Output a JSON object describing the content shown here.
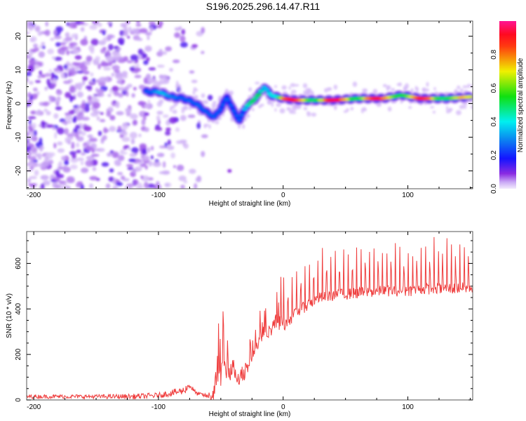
{
  "title": "S196.2025.296.14.47.R11",
  "chart_data": [
    {
      "type": "heatmap",
      "name": "spectrogram",
      "xlabel": "Height of straight line (km)",
      "ylabel": "Frequency (Hz)",
      "xlim": [
        -205.7,
        152
      ],
      "ylim": [
        -25.3,
        24.5
      ],
      "xticks": [
        -200,
        -100,
        0,
        100
      ],
      "xticks_minor_step": 25,
      "yticks": [
        -20,
        -10,
        0,
        10,
        20
      ],
      "yticks_minor_step": 5,
      "grid": false,
      "colorbar": {
        "label": "Normalized spectral amplitude",
        "range": [
          0.0,
          1.0
        ],
        "ticks": [
          0.0,
          0.2,
          0.4,
          0.6,
          0.8
        ],
        "colormap": [
          "#f0e6fb",
          "#7a1ff0",
          "#1010ff",
          "#00f0f0",
          "#10e010",
          "#f0f000",
          "#ff1010",
          "#ff1493"
        ]
      },
      "ridge": {
        "description": "dominant frequency track",
        "x": [
          -110,
          -100,
          -90,
          -80,
          -70,
          -60,
          -55,
          -50,
          -45,
          -40,
          -35,
          -30,
          -25,
          -20,
          -15,
          -10,
          -5,
          0,
          10,
          20,
          40,
          60,
          80,
          95,
          110,
          130,
          150
        ],
        "y": [
          3.5,
          3.5,
          2.0,
          1.5,
          0.0,
          -3.0,
          -4.0,
          -1.5,
          2.0,
          -2.0,
          -5.0,
          -1.0,
          0.5,
          2.5,
          5.0,
          2.5,
          2.0,
          1.5,
          1.0,
          1.0,
          1.0,
          1.5,
          1.5,
          2.5,
          1.5,
          1.5,
          2.0
        ],
        "amplitude": [
          0.3,
          0.35,
          0.35,
          0.45,
          0.3,
          0.2,
          0.2,
          0.2,
          0.25,
          0.2,
          0.2,
          0.4,
          0.5,
          0.6,
          0.55,
          0.75,
          0.65,
          0.85,
          0.95,
          0.9,
          0.95,
          0.95,
          0.9,
          0.95,
          0.9,
          0.9,
          0.7
        ]
      },
      "noise_region": {
        "x_range": [
          -205.7,
          -55
        ],
        "amplitude_range": [
          0.0,
          0.15
        ]
      }
    },
    {
      "type": "line",
      "name": "snr",
      "xlabel": "Height of straight line (km)",
      "ylabel": "SNR (10 * v/v)",
      "xlim": [
        -205.7,
        152
      ],
      "ylim": [
        0,
        740
      ],
      "xticks": [
        -200,
        -100,
        0,
        100
      ],
      "xticks_minor_step": 25,
      "yticks": [
        0,
        200,
        400,
        600
      ],
      "yticks_minor_step": 50,
      "grid": false,
      "series": [
        {
          "name": "SNR",
          "color": "#ee3333",
          "envelope_x": [
            -205,
            -180,
            -150,
            -120,
            -100,
            -80,
            -75,
            -70,
            -60,
            -50,
            -45,
            -40,
            -35,
            -30,
            -25,
            -20,
            -15,
            -10,
            -5,
            0,
            10,
            20,
            30,
            40,
            60,
            80,
            100,
            120,
            140,
            152
          ],
          "baseline": [
            15,
            15,
            15,
            15,
            20,
            40,
            65,
            30,
            15,
            30,
            80,
            90,
            60,
            80,
            160,
            220,
            260,
            280,
            300,
            320,
            380,
            420,
            450,
            460,
            470,
            480,
            480,
            490,
            490,
            495
          ],
          "peaks": [
            30,
            30,
            30,
            35,
            40,
            70,
            90,
            45,
            30,
            470,
            300,
            330,
            250,
            310,
            300,
            400,
            400,
            430,
            520,
            560,
            620,
            650,
            680,
            690,
            710,
            700,
            700,
            720,
            730,
            720
          ]
        }
      ]
    }
  ]
}
